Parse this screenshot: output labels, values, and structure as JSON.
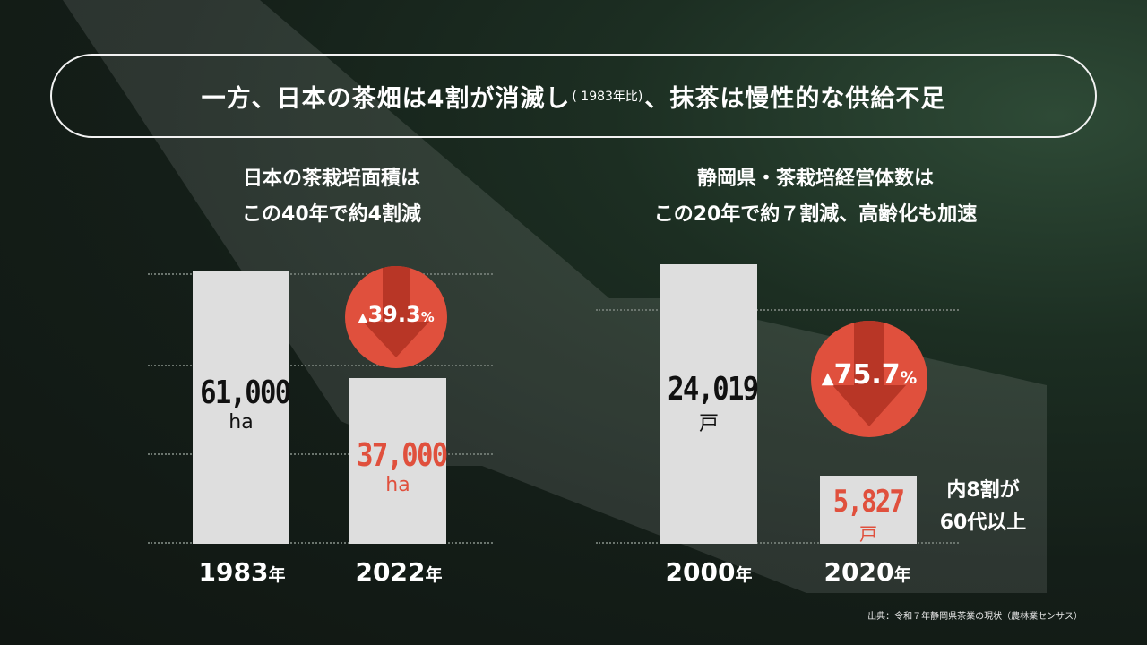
{
  "headline": {
    "main": "一方、日本の茶畑は4割が消滅し",
    "note": "( 1983年比)",
    "tail": "、抹茶は慢性的な供給不足"
  },
  "left_panel": {
    "title_line1": "日本の茶栽培面積は",
    "title_line2": "この40年で約4割減",
    "badge_symbol": "▲",
    "badge_value": "39.3",
    "badge_unit": "%"
  },
  "right_panel": {
    "title_line1": "静岡県・茶栽培経営体数は",
    "title_line2": "この20年で約７割減、高齢化も加速",
    "badge_symbol": "▲",
    "badge_value": "75.7",
    "badge_unit": "%",
    "side_note_line1": "内8割が",
    "side_note_line2": "60代以上"
  },
  "chart_data": [
    {
      "type": "bar",
      "categories": [
        "1983年",
        "2022年"
      ],
      "values": [
        61000,
        37000
      ],
      "value_labels": [
        "61,000",
        "37,000"
      ],
      "unit": "ha",
      "title": "日本の茶栽培面積は この40年で約4割減",
      "change": "▲39.3%",
      "colors": {
        "bar": "#dedede",
        "highlight_text": "#e0503d",
        "badge": "#e0503d"
      }
    },
    {
      "type": "bar",
      "categories": [
        "2000年",
        "2020年"
      ],
      "values": [
        24019,
        5827
      ],
      "value_labels": [
        "24,019",
        "5,827"
      ],
      "unit": "戸",
      "title": "静岡県・茶栽培経営体数は この20年で約７割減、高齢化も加速",
      "change": "▲75.7%",
      "colors": {
        "bar": "#dedede",
        "highlight_text": "#e0503d",
        "badge": "#e0503d"
      }
    }
  ],
  "years": {
    "left_1": "1983",
    "left_2": "2022",
    "right_1": "2000",
    "right_2": "2020",
    "suffix": "年"
  },
  "source": "出典：令和７年静岡県茶業の現状（農林業センサス）",
  "colors": {
    "accent_red": "#e0503d",
    "bar_gray": "#dedede",
    "background": "#141e18"
  }
}
